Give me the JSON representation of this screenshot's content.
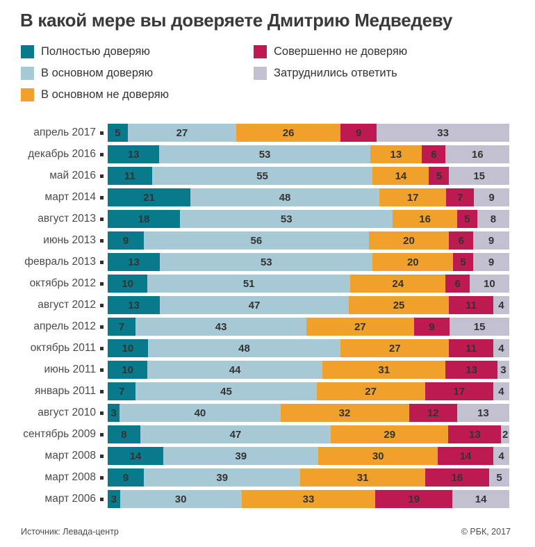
{
  "title": "В какой мере вы доверяете Дмитрию Медведеву",
  "footer": {
    "source": "Источник: Левада-центр",
    "copyright": "© РБК, 2017"
  },
  "legend": {
    "columns": [
      [
        0,
        1,
        2
      ],
      [
        3,
        4
      ]
    ]
  },
  "colors": {
    "background": "#ffffff",
    "title_text": "#3a3a3a",
    "label_text": "#4a4a4a",
    "value_text": "#333333",
    "marker": "#2f2f2f"
  },
  "chart_data": {
    "type": "bar",
    "stacked": true,
    "orientation": "horizontal",
    "unit": "percent",
    "xlim": [
      0,
      100
    ],
    "grid": false,
    "legend_position": "top",
    "value_labels": "inside-center",
    "title": "В какой мере вы доверяете Дмитрию Медведеву",
    "categories": [
      "апрель 2017",
      "декабрь 2016",
      "май 2016",
      "март 2014",
      "август 2013",
      "июнь 2013",
      "февраль 2013",
      "октябрь 2012",
      "август 2012",
      "апрель 2012",
      "октябрь 2011",
      "июнь 2011",
      "январь 2011",
      "август 2010",
      "сентябрь 2009",
      "март 2008",
      "март 2008",
      "март 2006"
    ],
    "series": [
      {
        "name": "Полностью доверяю",
        "color": "#087a8c",
        "values": [
          5,
          13,
          11,
          21,
          18,
          9,
          13,
          10,
          13,
          7,
          10,
          10,
          7,
          3,
          8,
          14,
          9,
          3
        ]
      },
      {
        "name": "В основном доверяю",
        "color": "#a6c9d5",
        "values": [
          27,
          53,
          55,
          48,
          53,
          56,
          53,
          51,
          47,
          43,
          48,
          44,
          45,
          40,
          47,
          39,
          39,
          30
        ]
      },
      {
        "name": "В основном не доверяю",
        "color": "#f0a12b",
        "values": [
          26,
          13,
          14,
          17,
          16,
          20,
          20,
          24,
          25,
          27,
          27,
          31,
          27,
          32,
          29,
          30,
          31,
          33
        ]
      },
      {
        "name": "Совершенно не доверяю",
        "color": "#bd1a52",
        "values": [
          9,
          6,
          5,
          7,
          5,
          6,
          5,
          6,
          11,
          9,
          11,
          13,
          17,
          12,
          13,
          14,
          16,
          19
        ]
      },
      {
        "name": "Затруднились ответить",
        "color": "#c3c1d1",
        "values": [
          33,
          16,
          15,
          9,
          8,
          9,
          9,
          10,
          4,
          15,
          4,
          3,
          4,
          13,
          2,
          4,
          5,
          14
        ]
      }
    ]
  }
}
